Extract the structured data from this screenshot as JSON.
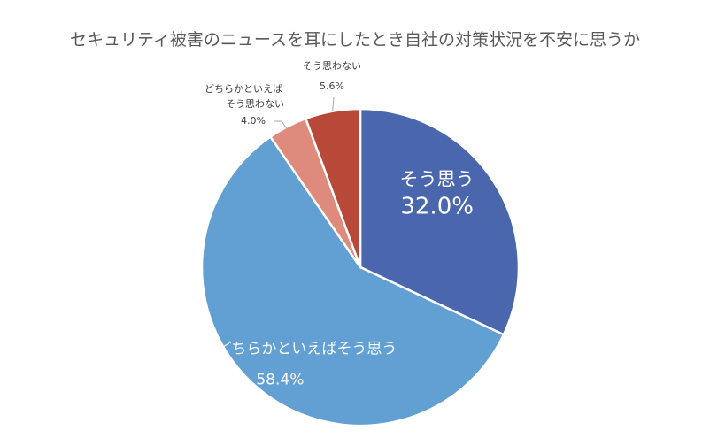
{
  "chart_data": {
    "type": "pie",
    "title": "セキュリティ被害のニュースを耳にしたとき自社の対策状況を不安に思うか",
    "slices": [
      {
        "label": "そう思う",
        "value": 32.0,
        "value_label": "32.0%",
        "color": "#4a67ae"
      },
      {
        "label": "どちらかといえばそう思う",
        "value": 58.4,
        "value_label": "58.4%",
        "color": "#629fd3"
      },
      {
        "label": "どちらかといえばそう思わない",
        "label_lines": [
          "どちらかといえば",
          "そう思わない"
        ],
        "value": 4.0,
        "value_label": "4.0%",
        "color": "#de8a7d"
      },
      {
        "label": "そう思わない",
        "value": 5.6,
        "value_label": "5.6%",
        "color": "#b84837"
      }
    ],
    "legend": "none",
    "start_angle": "top",
    "direction": "clockwise"
  }
}
